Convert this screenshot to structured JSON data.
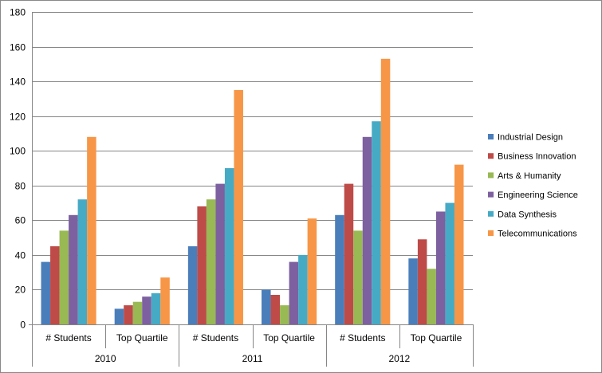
{
  "chart_data": {
    "type": "bar",
    "title": "",
    "xlabel": "",
    "ylabel": "",
    "ylim": [
      0,
      180
    ],
    "yticks": [
      0,
      20,
      40,
      60,
      80,
      100,
      120,
      140,
      160,
      180
    ],
    "grid": true,
    "legend_position": "right",
    "groups": [
      "2010",
      "2011",
      "2012"
    ],
    "categories": [
      "# Students",
      "Top Quartile",
      "# Students",
      "Top Quartile",
      "# Students",
      "Top Quartile"
    ],
    "series": [
      {
        "name": "Industrial Design",
        "color": "#4a7ebb",
        "values": [
          36,
          9,
          45,
          20,
          63,
          38
        ]
      },
      {
        "name": "Business Innovation",
        "color": "#be4b48",
        "values": [
          45,
          11,
          68,
          17,
          81,
          49
        ]
      },
      {
        "name": "Arts & Humanity",
        "color": "#98b954",
        "values": [
          54,
          13,
          72,
          11,
          54,
          32
        ]
      },
      {
        "name": "Engineering Science",
        "color": "#7d60a0",
        "values": [
          63,
          16,
          81,
          36,
          108,
          65
        ]
      },
      {
        "name": "Data Synthesis",
        "color": "#46aac5",
        "values": [
          72,
          18,
          90,
          40,
          117,
          70
        ]
      },
      {
        "name": "Telecommunications",
        "color": "#f79646",
        "values": [
          108,
          27,
          135,
          61,
          153,
          92
        ]
      }
    ]
  }
}
